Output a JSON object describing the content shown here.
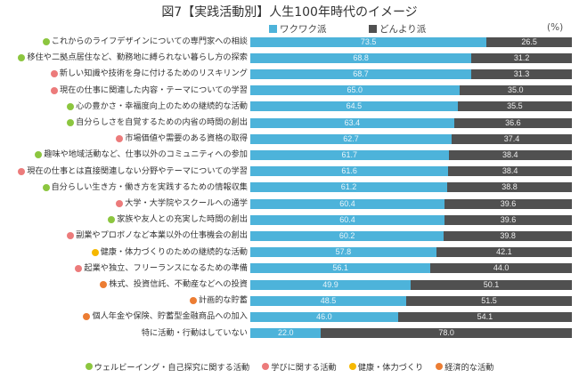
{
  "chart_data": {
    "type": "bar",
    "orientation": "horizontal",
    "stacked": true,
    "title": "図7【実践活動別】人生100年時代のイメージ",
    "unit_label": "(%)",
    "xlim": [
      0,
      100
    ],
    "grid": false,
    "legend_position": "top",
    "series": [
      {
        "name": "ワクワク派",
        "color": "#4db3da",
        "values": [
          73.5,
          68.8,
          68.7,
          65.0,
          64.5,
          63.4,
          62.7,
          61.7,
          61.6,
          61.2,
          60.4,
          60.4,
          60.2,
          57.8,
          56.1,
          49.9,
          48.5,
          46.0,
          22.0
        ]
      },
      {
        "name": "どんより派",
        "color": "#505050",
        "values": [
          26.5,
          31.2,
          31.3,
          35.0,
          35.5,
          36.6,
          37.4,
          38.4,
          38.4,
          38.8,
          39.6,
          39.6,
          39.8,
          42.1,
          44.0,
          50.1,
          51.5,
          54.1,
          78.0
        ]
      }
    ],
    "value_labels": [
      [
        "73.5",
        "26.5"
      ],
      [
        "68.8",
        "31.2"
      ],
      [
        "68.7",
        "31.3"
      ],
      [
        "65.0",
        "35.0"
      ],
      [
        "64.5",
        "35.5"
      ],
      [
        "63.4",
        "36.6"
      ],
      [
        "62.7",
        "37.4"
      ],
      [
        "61.7",
        "38.4"
      ],
      [
        "61.6",
        "38.4"
      ],
      [
        "61.2",
        "38.8"
      ],
      [
        "60.4",
        "39.6"
      ],
      [
        "60.4",
        "39.6"
      ],
      [
        "60.2",
        "39.8"
      ],
      [
        "57.8",
        "42.1"
      ],
      [
        "56.1",
        "44.0"
      ],
      [
        "49.9",
        "50.1"
      ],
      [
        "48.5",
        "51.5"
      ],
      [
        "46.0",
        "54.1"
      ],
      [
        "22.0",
        "78.0"
      ]
    ],
    "categories": [
      {
        "label": "これからのライフデザインについての専門家への相談",
        "group": "wellbeing"
      },
      {
        "label": "移住や二拠点居住など、勤務地に縛られない暮らし方の探索",
        "group": "wellbeing"
      },
      {
        "label": "新しい知識や技術を身に付けるためのリスキリング",
        "group": "learning"
      },
      {
        "label": "現在の仕事に関連した内容・テーマについての学習",
        "group": "learning"
      },
      {
        "label": "心の豊かさ・幸福度向上のための継続的な活動",
        "group": "wellbeing"
      },
      {
        "label": "自分らしさを自覚するための内省の時間の創出",
        "group": "wellbeing"
      },
      {
        "label": "市場価値や需要のある資格の取得",
        "group": "learning"
      },
      {
        "label": "趣味や地域活動など、仕事以外のコミュニティへの参加",
        "group": "wellbeing"
      },
      {
        "label": "現在の仕事とは直接関連しない分野やテーマについての学習",
        "group": "learning"
      },
      {
        "label": "自分らしい生き方・働き方を実践するための情報収集",
        "group": "wellbeing"
      },
      {
        "label": "大学・大学院やスクールへの通学",
        "group": "learning"
      },
      {
        "label": "家族や友人との充実した時間の創出",
        "group": "wellbeing"
      },
      {
        "label": "副業やプロボノなど本業以外の仕事機会の創出",
        "group": "learning"
      },
      {
        "label": "健康・体力づくりのための継続的な活動",
        "group": "health"
      },
      {
        "label": "起業や独立、フリーランスになるための準備",
        "group": "learning"
      },
      {
        "label": "株式、投資信託、不動産などへの投資",
        "group": "economic"
      },
      {
        "label": "計画的な貯蓄",
        "group": "economic"
      },
      {
        "label": "個人年金や保険、貯蓄型金融商品への加入",
        "group": "economic"
      },
      {
        "label": "特に活動・行動はしていない",
        "group": "none"
      }
    ],
    "groups": [
      {
        "key": "wellbeing",
        "label": "ウェルビーイング・自己探究に関する活動",
        "color": "#8cc63f"
      },
      {
        "key": "learning",
        "label": "学びに関する活動",
        "color": "#ec7b7b"
      },
      {
        "key": "health",
        "label": "健康・体力づくり",
        "color": "#f6b800"
      },
      {
        "key": "economic",
        "label": "経済的な活動",
        "color": "#ec7d33"
      }
    ]
  }
}
